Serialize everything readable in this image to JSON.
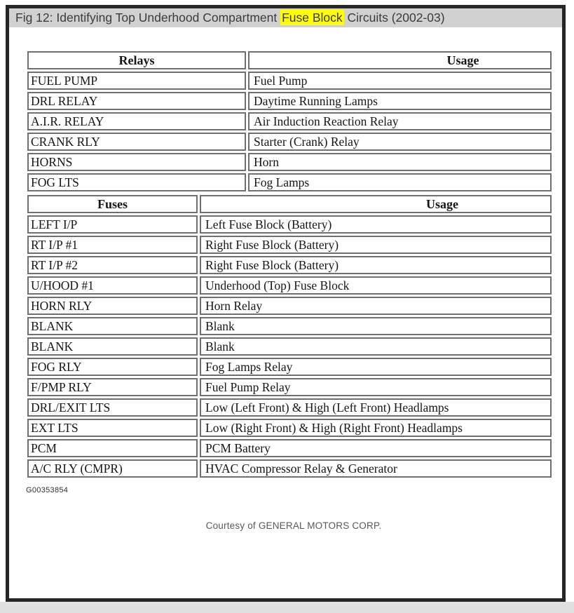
{
  "title": {
    "prefix": "Fig 12: Identifying Top Underhood Compartment ",
    "highlight": "Fuse Block",
    "suffix": " Circuits (2002-03)"
  },
  "relays_table": {
    "col1_header": "Relays",
    "col2_header": "Usage",
    "rows": [
      [
        "FUEL PUMP",
        "Fuel Pump"
      ],
      [
        "DRL RELAY",
        "Daytime Running Lamps"
      ],
      [
        "A.I.R. RELAY",
        "Air Induction Reaction Relay"
      ],
      [
        "CRANK RLY",
        "Starter (Crank) Relay"
      ],
      [
        "HORNS",
        "Horn"
      ],
      [
        "FOG LTS",
        "Fog Lamps"
      ]
    ]
  },
  "fuses_table": {
    "col1_header": "Fuses",
    "col2_header": "Usage",
    "rows": [
      [
        "LEFT I/P",
        "Left Fuse Block (Battery)"
      ],
      [
        "RT I/P #1",
        "Right Fuse Block (Battery)"
      ],
      [
        "RT I/P #2",
        "Right Fuse Block (Battery)"
      ],
      [
        "U/HOOD #1",
        "Underhood (Top) Fuse Block"
      ],
      [
        "HORN RLY",
        "Horn Relay"
      ],
      [
        "BLANK",
        "Blank"
      ],
      [
        "BLANK",
        "Blank"
      ],
      [
        "FOG RLY",
        "Fog Lamps Relay"
      ],
      [
        "F/PMP RLY",
        "Fuel Pump Relay"
      ],
      [
        "DRL/EXIT LTS",
        "Low (Left Front) & High (Left Front) Headlamps"
      ],
      [
        "EXT LTS",
        "Low (Right Front) & High (Right Front) Headlamps"
      ],
      [
        "PCM",
        "PCM Battery"
      ],
      [
        "A/C RLY (CMPR)",
        "HVAC Compressor Relay & Generator"
      ]
    ]
  },
  "footer": {
    "figure_id": "G00353854",
    "courtesy": "Courtesy of GENERAL MOTORS CORP."
  },
  "colors": {
    "highlight": "#ffff00",
    "titlebar_bg": "#d1d1d1",
    "frame_border": "#262626",
    "table_border": "#6f6f6f"
  }
}
